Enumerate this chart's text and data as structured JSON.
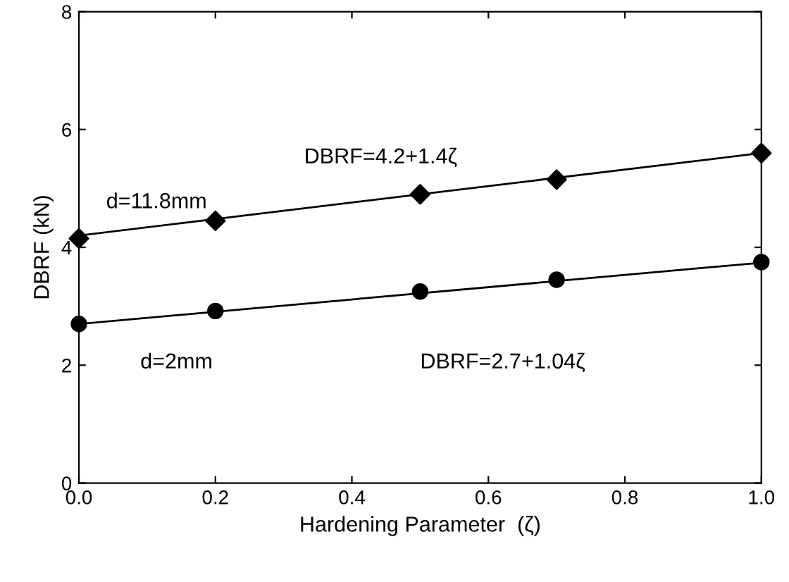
{
  "chart_data": {
    "type": "scatter",
    "xlabel": "Hardening Parameter  (ζ)",
    "ylabel": "DBRF (kN)",
    "xlim": [
      0,
      1
    ],
    "ylim": [
      0,
      8
    ],
    "xticks": [
      {
        "value": 0,
        "label": "0.0"
      },
      0.2,
      0.4,
      0.6,
      0.8,
      {
        "value": 1,
        "label": "1.0"
      }
    ],
    "yticks": [
      0,
      2,
      4,
      6,
      8
    ],
    "grid": false,
    "legend": false,
    "series": [
      {
        "marker": "diamond",
        "color": "#000000",
        "x": [
          0,
          0.2,
          0.5,
          0.7,
          1.0
        ],
        "values": [
          4.15,
          4.45,
          4.9,
          5.15,
          5.6
        ]
      },
      {
        "marker": "circle",
        "color": "#000000",
        "x": [
          0,
          0.2,
          0.5,
          0.7,
          1.0
        ],
        "values": [
          2.7,
          2.92,
          3.25,
          3.45,
          3.75
        ]
      },
      {
        "type": "line",
        "marker": "none",
        "line_style": "solid",
        "color": "#000000",
        "x": [
          0,
          1
        ],
        "values": [
          4.2,
          5.6
        ]
      },
      {
        "type": "line",
        "marker": "none",
        "line_style": "solid",
        "color": "#000000",
        "x": [
          0,
          1
        ],
        "values": [
          2.7,
          3.74
        ]
      }
    ],
    "annotations": [
      "DBRF=4.2+1.4ζ",
      "d=11.8mm",
      "d=2mm",
      "DBRF=2.7+1.04ζ"
    ]
  }
}
